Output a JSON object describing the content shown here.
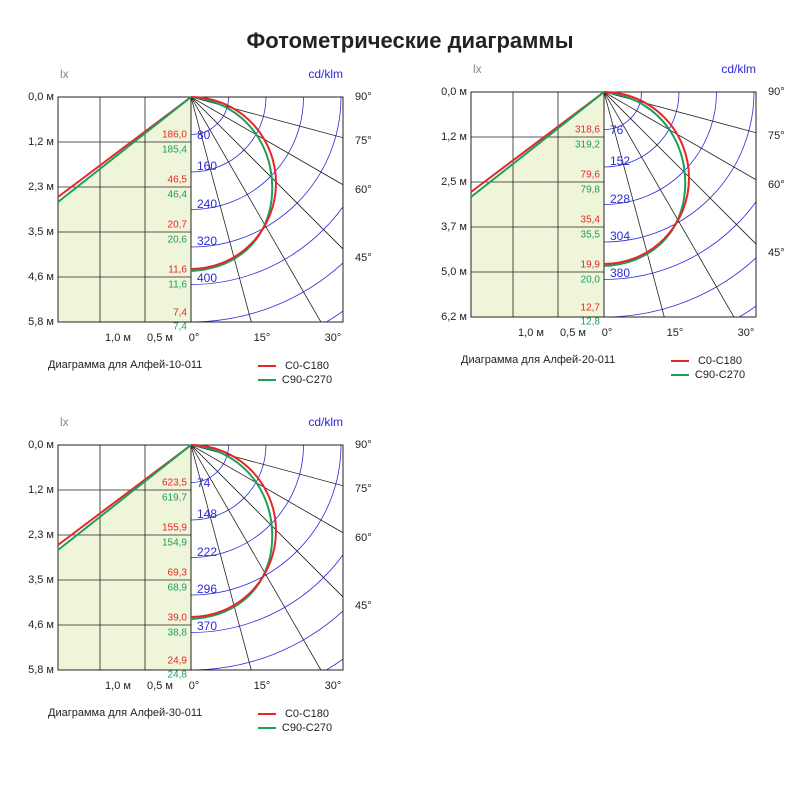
{
  "title": "Фотометрические диаграммы",
  "diagrams": [
    {
      "left_unit": "lx",
      "right_unit": "cd/klm",
      "distances": [
        "0,0 м",
        "1,2 м",
        "2,3 м",
        "3,5 м",
        "4,6 м",
        "5,8 м"
      ],
      "width_labels": [
        "1,0 м",
        "0,5 м"
      ],
      "angles_bottom": [
        "0°",
        "15°",
        "30°"
      ],
      "angles_right": [
        "90°",
        "75°",
        "60°",
        "45°"
      ],
      "intensity_ticks": [
        "80",
        "160",
        "240",
        "320",
        "400"
      ],
      "lux_c0": [
        "186,0",
        "46,5",
        "20,7",
        "11,6",
        "7,4"
      ],
      "lux_c90": [
        "185,4",
        "46,4",
        "20,6",
        "11,6",
        "7,4"
      ],
      "caption": "Диаграмма для Алфей-10-011",
      "legend": [
        "C0-C180",
        "C90-C270"
      ]
    },
    {
      "left_unit": "lx",
      "right_unit": "cd/klm",
      "distances": [
        "0,0 м",
        "1,2 м",
        "2,5 м",
        "3,7 м",
        "5,0 м",
        "6,2 м"
      ],
      "width_labels": [
        "1,0 м",
        "0,5 м"
      ],
      "angles_bottom": [
        "0°",
        "15°",
        "30°"
      ],
      "angles_right": [
        "90°",
        "75°",
        "60°",
        "45°"
      ],
      "intensity_ticks": [
        "76",
        "152",
        "228",
        "304",
        "380"
      ],
      "lux_c0": [
        "318,6",
        "79,6",
        "35,4",
        "19,9",
        "12,7"
      ],
      "lux_c90": [
        "319,2",
        "79,8",
        "35,5",
        "20,0",
        "12,8"
      ],
      "caption": "Диаграмма для Алфей-20-011",
      "legend": [
        "C0-C180",
        "C90-C270"
      ]
    },
    {
      "left_unit": "lx",
      "right_unit": "cd/klm",
      "distances": [
        "0,0 м",
        "1,2 м",
        "2,3 м",
        "3,5 м",
        "4,6 м",
        "5,8 м"
      ],
      "width_labels": [
        "1,0 м",
        "0,5 м"
      ],
      "angles_bottom": [
        "0°",
        "15°",
        "30°"
      ],
      "angles_right": [
        "90°",
        "75°",
        "60°",
        "45°"
      ],
      "intensity_ticks": [
        "74",
        "148",
        "222",
        "296",
        "370"
      ],
      "lux_c0": [
        "623,5",
        "155,9",
        "69,3",
        "39,0",
        "24,9"
      ],
      "lux_c90": [
        "619,7",
        "154,9",
        "68,9",
        "38,8",
        "24,8"
      ],
      "caption": "Диаграмма для Алфей-30-011",
      "legend": [
        "C0-C180",
        "C90-C270"
      ]
    }
  ]
}
